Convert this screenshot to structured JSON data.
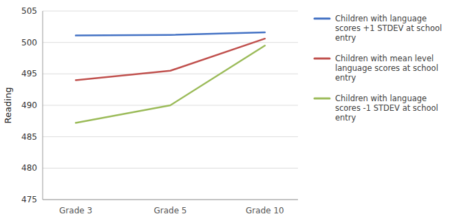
{
  "chart_data": {
    "type": "line",
    "categories": [
      "Grade 3",
      "Grade 5",
      "Grade 10"
    ],
    "series": [
      {
        "name": "Children with language\nscores +1 STDEV at school\nentry",
        "color": "#4472C4",
        "values": [
          501.1,
          501.2,
          501.6
        ]
      },
      {
        "name": "Children with mean level\nlanguage scores at school\nentry",
        "color": "#C0504D",
        "values": [
          494.0,
          495.5,
          500.6
        ]
      },
      {
        "name": "Children with language\nscores -1 STDEV at school\nentry",
        "color": "#9BBB59",
        "values": [
          487.2,
          490.0,
          499.5
        ]
      }
    ],
    "ylabel": "Reading",
    "ylim": [
      475,
      505
    ],
    "yticks": [
      475,
      480,
      485,
      490,
      495,
      500,
      505
    ],
    "grid": true,
    "legend": "right"
  }
}
